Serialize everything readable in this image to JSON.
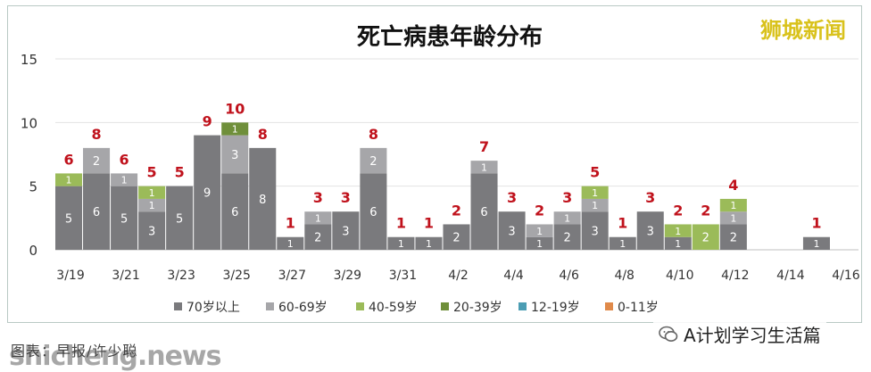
{
  "brand": "狮城新闻",
  "caption": "图表：早报/许少聪",
  "watermark": "shicheng.news",
  "account": "A计划学习生活篇",
  "colors": {
    "70plus": "#7a7a7d",
    "60_69": "#a6a6a9",
    "40_59": "#9bbb59",
    "20_39": "#6f8f3a",
    "12_19": "#4b9db3",
    "0_11": "#e08a4a",
    "total_label": "#c0121c"
  },
  "chart_data": {
    "type": "bar",
    "stacked": true,
    "title": "死亡病患年龄分布",
    "ylim": [
      0,
      15
    ],
    "yticks": [
      0,
      5,
      10,
      15
    ],
    "grid": true,
    "legend_position": "bottom",
    "categories": [
      "3/19",
      "3/20",
      "3/21",
      "3/22",
      "3/23",
      "3/24",
      "3/25",
      "3/26",
      "3/27",
      "3/28",
      "3/29",
      "3/30",
      "3/31",
      "4/1",
      "4/2",
      "4/3",
      "4/4",
      "4/5",
      "4/6",
      "4/7",
      "4/8",
      "4/9",
      "4/10",
      "4/11",
      "4/12",
      "4/13",
      "4/14",
      "4/15",
      "4/16"
    ],
    "xtick_labels": [
      "3/19",
      "",
      "3/21",
      "",
      "3/23",
      "",
      "3/25",
      "",
      "3/27",
      "",
      "3/29",
      "",
      "3/31",
      "",
      "4/2",
      "",
      "4/4",
      "",
      "4/6",
      "",
      "4/8",
      "",
      "4/10",
      "",
      "4/12",
      "",
      "4/14",
      "",
      "4/16"
    ],
    "series": [
      {
        "name": "70岁以上",
        "values": [
          5,
          6,
          5,
          3,
          5,
          9,
          6,
          8,
          1,
          2,
          3,
          6,
          1,
          1,
          2,
          6,
          3,
          1,
          2,
          3,
          1,
          3,
          1,
          0,
          2,
          0,
          0,
          1,
          0
        ]
      },
      {
        "name": "60-69岁",
        "values": [
          0,
          2,
          1,
          1,
          0,
          0,
          3,
          0,
          0,
          1,
          0,
          2,
          0,
          0,
          0,
          1,
          0,
          1,
          1,
          1,
          0,
          0,
          0,
          0,
          1,
          0,
          0,
          0,
          0
        ]
      },
      {
        "name": "40-59岁",
        "values": [
          1,
          0,
          0,
          1,
          0,
          0,
          0,
          0,
          0,
          0,
          0,
          0,
          0,
          0,
          0,
          0,
          0,
          0,
          0,
          1,
          0,
          0,
          1,
          2,
          1,
          0,
          0,
          0,
          0
        ]
      },
      {
        "name": "20-39岁",
        "values": [
          0,
          0,
          0,
          0,
          0,
          0,
          1,
          0,
          0,
          0,
          0,
          0,
          0,
          0,
          0,
          0,
          0,
          0,
          0,
          0,
          0,
          0,
          0,
          0,
          0,
          0,
          0,
          0,
          0
        ]
      },
      {
        "name": "12-19岁",
        "values": [
          0,
          0,
          0,
          0,
          0,
          0,
          0,
          0,
          0,
          0,
          0,
          0,
          0,
          0,
          0,
          0,
          0,
          0,
          0,
          0,
          0,
          0,
          0,
          0,
          0,
          0,
          0,
          0,
          0
        ]
      },
      {
        "name": "0-11岁",
        "values": [
          0,
          0,
          0,
          0,
          0,
          0,
          0,
          0,
          0,
          0,
          0,
          0,
          0,
          0,
          0,
          0,
          0,
          0,
          0,
          0,
          0,
          0,
          0,
          0,
          0,
          0,
          0,
          0,
          0
        ]
      }
    ],
    "totals": [
      6,
      8,
      6,
      5,
      5,
      9,
      10,
      8,
      1,
      3,
      3,
      8,
      1,
      1,
      2,
      7,
      3,
      2,
      3,
      5,
      1,
      3,
      2,
      2,
      4,
      0,
      0,
      1,
      0
    ]
  }
}
